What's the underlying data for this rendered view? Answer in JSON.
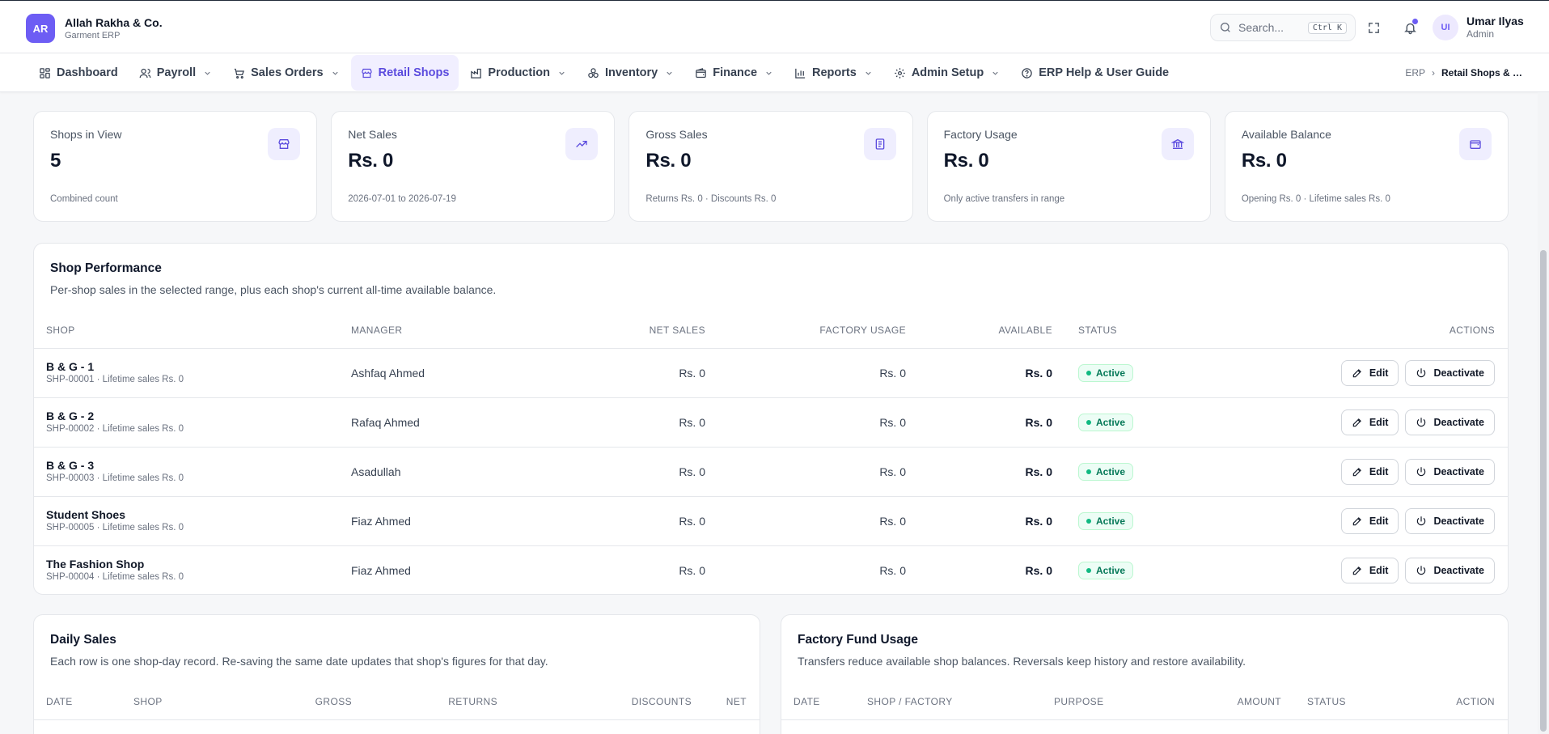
{
  "brand": {
    "logo": "AR",
    "name": "Allah Rakha & Co.",
    "subtitle": "Garment ERP"
  },
  "search": {
    "placeholder": "Search...",
    "shortcut": "Ctrl K"
  },
  "user": {
    "initials": "UI",
    "name": "Umar Ilyas",
    "role": "Admin"
  },
  "nav": [
    {
      "label": "Dashboard",
      "icon": "dashboard-icon"
    },
    {
      "label": "Payroll",
      "icon": "users-icon",
      "dropdown": true
    },
    {
      "label": "Sales Orders",
      "icon": "cart-icon",
      "dropdown": true
    },
    {
      "label": "Retail Shops",
      "icon": "store-icon",
      "active": true
    },
    {
      "label": "Production",
      "icon": "factory-icon",
      "dropdown": true
    },
    {
      "label": "Inventory",
      "icon": "boxes-icon",
      "dropdown": true
    },
    {
      "label": "Finance",
      "icon": "wallet-icon",
      "dropdown": true
    },
    {
      "label": "Reports",
      "icon": "bar-chart-icon",
      "dropdown": true
    },
    {
      "label": "Admin Setup",
      "icon": "gear-icon",
      "dropdown": true
    },
    {
      "label": "ERP Help & User Guide",
      "icon": "help-icon"
    }
  ],
  "breadcrumb": {
    "root": "ERP",
    "separator": "›",
    "current": "Retail Shops & Daily Sales"
  },
  "stats": [
    {
      "label": "Shops in View",
      "value": "5",
      "hint": "Combined count",
      "icon": "store-icon"
    },
    {
      "label": "Net Sales",
      "value": "Rs. 0",
      "hint": "2026-07-01 to 2026-07-19",
      "icon": "trending-up-icon"
    },
    {
      "label": "Gross Sales",
      "value": "Rs. 0",
      "hint": "Returns Rs. 0 · Discounts Rs. 0",
      "icon": "receipt-icon"
    },
    {
      "label": "Factory Usage",
      "value": "Rs. 0",
      "hint": "Only active transfers in range",
      "icon": "bank-icon"
    },
    {
      "label": "Available Balance",
      "value": "Rs. 0",
      "hint": "Opening Rs. 0 · Lifetime sales Rs. 0",
      "icon": "wallet-icon"
    }
  ],
  "shop_performance": {
    "title": "Shop Performance",
    "subtitle": "Per-shop sales in the selected range, plus each shop's current all-time available balance.",
    "columns": [
      "SHOP",
      "MANAGER",
      "NET SALES",
      "FACTORY USAGE",
      "AVAILABLE",
      "STATUS",
      "ACTIONS"
    ],
    "edit_label": "Edit",
    "deactivate_label": "Deactivate",
    "rows": [
      {
        "name": "B & G - 1",
        "sub": "SHP-00001 · Lifetime sales Rs. 0",
        "manager": "Ashfaq Ahmed",
        "net_sales": "Rs. 0",
        "factory_usage": "Rs. 0",
        "available": "Rs. 0",
        "status": "Active"
      },
      {
        "name": "B & G - 2",
        "sub": "SHP-00002 · Lifetime sales Rs. 0",
        "manager": "Rafaq Ahmed",
        "net_sales": "Rs. 0",
        "factory_usage": "Rs. 0",
        "available": "Rs. 0",
        "status": "Active"
      },
      {
        "name": "B & G - 3",
        "sub": "SHP-00003 · Lifetime sales Rs. 0",
        "manager": "Asadullah",
        "net_sales": "Rs. 0",
        "factory_usage": "Rs. 0",
        "available": "Rs. 0",
        "status": "Active"
      },
      {
        "name": "Student Shoes",
        "sub": "SHP-00005 · Lifetime sales Rs. 0",
        "manager": "Fiaz Ahmed",
        "net_sales": "Rs. 0",
        "factory_usage": "Rs. 0",
        "available": "Rs. 0",
        "status": "Active"
      },
      {
        "name": "The Fashion Shop",
        "sub": "SHP-00004 · Lifetime sales Rs. 0",
        "manager": "Fiaz Ahmed",
        "net_sales": "Rs. 0",
        "factory_usage": "Rs. 0",
        "available": "Rs. 0",
        "status": "Active"
      }
    ]
  },
  "daily_sales": {
    "title": "Daily Sales",
    "subtitle": "Each row is one shop-day record. Re-saving the same date updates that shop's figures for that day.",
    "columns": [
      "DATE",
      "SHOP",
      "GROSS",
      "RETURNS",
      "DISCOUNTS",
      "NET"
    ]
  },
  "factory_fund": {
    "title": "Factory Fund Usage",
    "subtitle": "Transfers reduce available shop balances. Reversals keep history and restore availability.",
    "columns": [
      "DATE",
      "SHOP / FACTORY",
      "PURPOSE",
      "AMOUNT",
      "STATUS",
      "ACTION"
    ]
  },
  "colors": {
    "accent": "#6d5df4",
    "active_nav_bg": "#f1efff",
    "success": "#10b981"
  }
}
